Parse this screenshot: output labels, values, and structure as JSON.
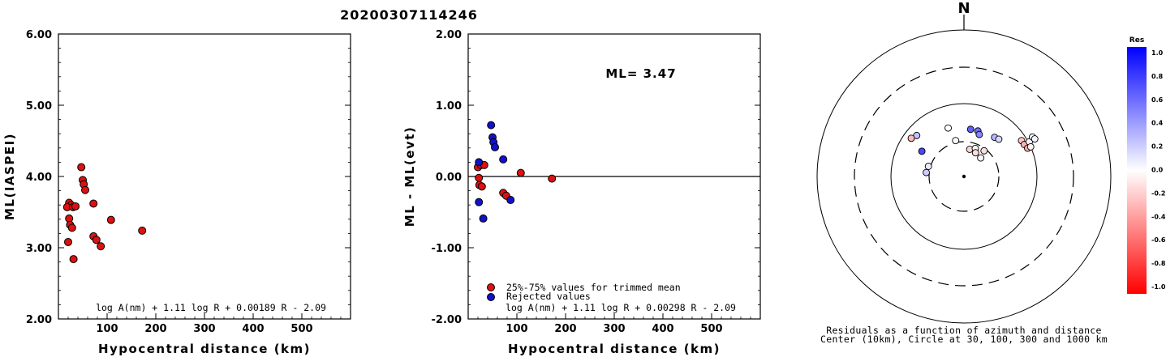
{
  "page_title": "20200307114246",
  "chart_data": [
    {
      "type": "scatter",
      "ylabel": "ML(IASPEI)",
      "xlabel": "Hypocentral distance (km)",
      "xlim": [
        0,
        600
      ],
      "ylim": [
        2.0,
        6.0
      ],
      "xticks": [
        "100",
        "200",
        "300",
        "400",
        "500"
      ],
      "yticks": [
        "2.00",
        "3.00",
        "4.00",
        "5.00",
        "6.00"
      ],
      "formula": "log A(nm) + 1.11 log R + 0.00189 R - 2.09",
      "point_color": "#dd1111",
      "points": [
        {
          "x": 47,
          "y": 4.13
        },
        {
          "x": 50,
          "y": 3.95
        },
        {
          "x": 52,
          "y": 3.89
        },
        {
          "x": 55,
          "y": 3.81
        },
        {
          "x": 22,
          "y": 3.63
        },
        {
          "x": 26,
          "y": 3.6
        },
        {
          "x": 18,
          "y": 3.57
        },
        {
          "x": 30,
          "y": 3.57
        },
        {
          "x": 35,
          "y": 3.58
        },
        {
          "x": 72,
          "y": 3.62
        },
        {
          "x": 22,
          "y": 3.41
        },
        {
          "x": 24,
          "y": 3.32
        },
        {
          "x": 28,
          "y": 3.28
        },
        {
          "x": 108,
          "y": 3.39
        },
        {
          "x": 172,
          "y": 3.24
        },
        {
          "x": 72,
          "y": 3.16
        },
        {
          "x": 78,
          "y": 3.11
        },
        {
          "x": 20,
          "y": 3.08
        },
        {
          "x": 87,
          "y": 3.02
        },
        {
          "x": 31,
          "y": 2.84
        }
      ]
    },
    {
      "type": "scatter",
      "ylabel": "ML - ML(evt)",
      "xlabel": "Hypocentral distance (km)",
      "xlim": [
        0,
        600
      ],
      "ylim": [
        -2.0,
        2.0
      ],
      "xticks": [
        "100",
        "200",
        "300",
        "400",
        "500"
      ],
      "yticks": [
        "-2.00",
        "-1.00",
        "0.00",
        "1.00",
        "2.00"
      ],
      "annotation": "ML= 3.47",
      "formula": "log A(nm) + 1.11 log R + 0.00298 R - 2.09",
      "legend": [
        {
          "label": "25%-75% values for trimmed mean",
          "color": "#dd1111"
        },
        {
          "label": "Rejected values",
          "color": "#1111cc"
        }
      ],
      "series": [
        {
          "name": "25%-75% values for trimmed mean",
          "color": "#dd1111",
          "points": [
            {
              "x": 20,
              "y": 0.13
            },
            {
              "x": 26,
              "y": 0.16
            },
            {
              "x": 33,
              "y": 0.16
            },
            {
              "x": 22,
              "y": -0.02
            },
            {
              "x": 23,
              "y": -0.12
            },
            {
              "x": 28,
              "y": -0.14
            },
            {
              "x": 108,
              "y": 0.05
            },
            {
              "x": 172,
              "y": -0.03
            },
            {
              "x": 72,
              "y": -0.23
            },
            {
              "x": 78,
              "y": -0.27
            }
          ]
        },
        {
          "name": "Rejected values",
          "color": "#1111cc",
          "points": [
            {
              "x": 47,
              "y": 0.72
            },
            {
              "x": 50,
              "y": 0.55
            },
            {
              "x": 52,
              "y": 0.48
            },
            {
              "x": 55,
              "y": 0.41
            },
            {
              "x": 22,
              "y": 0.2
            },
            {
              "x": 72,
              "y": 0.24
            },
            {
              "x": 22,
              "y": -0.36
            },
            {
              "x": 87,
              "y": -0.33
            },
            {
              "x": 31,
              "y": -0.59
            }
          ]
        }
      ]
    },
    {
      "type": "scatter",
      "subtype": "polar-residual-map",
      "north_label": "N",
      "caption_line1": "Residuals as a function of azimuth and distance",
      "caption_line2": "Center (10km), Circle at 30, 100, 300 and 1000 km",
      "rings_km": [
        30,
        100,
        300,
        1000
      ],
      "points": [
        {
          "azimuth_deg": 311,
          "distance_km": 72,
          "residual": 0.24
        },
        {
          "azimuth_deg": 306,
          "distance_km": 78,
          "residual": -0.27
        },
        {
          "azimuth_deg": 301,
          "distance_km": 47,
          "residual": 0.72
        },
        {
          "azimuth_deg": 286,
          "distance_km": 32,
          "residual": 0.08
        },
        {
          "azimuth_deg": 276,
          "distance_km": 33,
          "residual": 0.2
        },
        {
          "azimuth_deg": 347,
          "distance_km": 32,
          "residual": 0.02
        },
        {
          "azimuth_deg": 342,
          "distance_km": 50,
          "residual": 0.0
        },
        {
          "azimuth_deg": 8,
          "distance_km": 45,
          "residual": 0.62
        },
        {
          "azimuth_deg": 17,
          "distance_km": 45,
          "residual": 0.55
        },
        {
          "azimuth_deg": 20,
          "distance_km": 41,
          "residual": 0.48
        },
        {
          "azimuth_deg": 12,
          "distance_km": 24,
          "residual": -0.16
        },
        {
          "azimuth_deg": 22,
          "distance_km": 26,
          "residual": 0.04
        },
        {
          "azimuth_deg": 26,
          "distance_km": 23,
          "residual": -0.13
        },
        {
          "azimuth_deg": 38,
          "distance_km": 28,
          "residual": -0.13
        },
        {
          "azimuth_deg": 42,
          "distance_km": 22,
          "residual": -0.02
        },
        {
          "azimuth_deg": 38,
          "distance_km": 48,
          "residual": 0.28
        },
        {
          "azimuth_deg": 43,
          "distance_km": 50,
          "residual": 0.15
        },
        {
          "azimuth_deg": 58,
          "distance_km": 85,
          "residual": -0.22
        },
        {
          "azimuth_deg": 62,
          "distance_km": 86,
          "residual": -0.3
        },
        {
          "azimuth_deg": 66,
          "distance_km": 90,
          "residual": -0.33
        },
        {
          "azimuth_deg": 62,
          "distance_km": 103,
          "residual": 0.03
        },
        {
          "azimuth_deg": 66,
          "distance_km": 100,
          "residual": -0.05
        },
        {
          "azimuth_deg": 60,
          "distance_km": 120,
          "residual": 0.02
        },
        {
          "azimuth_deg": 62,
          "distance_km": 124,
          "residual": 0.04
        }
      ]
    }
  ],
  "colorbar": {
    "title": "Res",
    "ticks": [
      "1.0",
      "0.8",
      "0.6",
      "0.4",
      "0.2",
      "0.0",
      "-0.2",
      "-0.4",
      "-0.6",
      "-0.8",
      "-1.0"
    ],
    "max_color": "#0000ff",
    "zero_color": "#ffffff",
    "min_color": "#ff0000"
  }
}
